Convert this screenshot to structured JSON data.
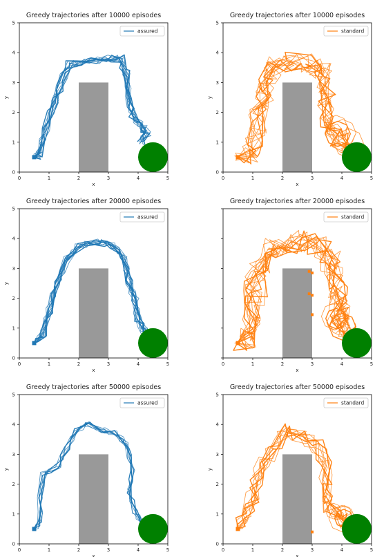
{
  "chart_data": [
    {
      "type": "line",
      "title": "Greedy trajectories after 10000 episodes",
      "xlabel": "x",
      "ylabel": "y",
      "xlim": [
        0,
        5
      ],
      "ylim": [
        0,
        5
      ],
      "xticks": [
        "0",
        "1",
        "2",
        "3",
        "4",
        "5"
      ],
      "yticks": [
        "0",
        "1",
        "2",
        "3",
        "4",
        "5"
      ],
      "legend": {
        "label": "assured",
        "position": "upper right"
      },
      "color": "#1f77b4",
      "obstacle": {
        "x": [
          2,
          3
        ],
        "y": [
          0,
          3
        ],
        "color": "#999999"
      },
      "goal": {
        "center": [
          4.5,
          0.5
        ],
        "radius": 0.5,
        "color": "#008000"
      },
      "start": [
        0.5,
        0.5
      ],
      "path": [
        [
          0.5,
          0.5
        ],
        [
          0.7,
          0.6
        ],
        [
          0.9,
          1.5
        ],
        [
          1.2,
          2.4
        ],
        [
          1.5,
          3.2
        ],
        [
          1.7,
          3.6
        ],
        [
          2.3,
          3.7
        ],
        [
          2.9,
          3.8
        ],
        [
          3.4,
          3.8
        ],
        [
          3.6,
          3.3
        ],
        [
          3.7,
          2.5
        ],
        [
          3.8,
          1.9
        ],
        [
          4.1,
          1.6
        ],
        [
          4.3,
          1.3
        ],
        [
          4.1,
          1.0
        ]
      ],
      "noise": 0.14,
      "count": 12,
      "extra_marks": []
    },
    {
      "type": "line",
      "title": "Greedy trajectories after 10000 episodes",
      "xlabel": "x",
      "ylabel": "y",
      "xlim": [
        0,
        5
      ],
      "ylim": [
        0,
        5
      ],
      "xticks": [
        "0",
        "1",
        "2",
        "3",
        "4",
        "5"
      ],
      "yticks": [
        "0",
        "1",
        "2",
        "3",
        "4",
        "5"
      ],
      "legend": {
        "label": "standard",
        "position": "upper right"
      },
      "color": "#ff7f0e",
      "obstacle": {
        "x": [
          2,
          3
        ],
        "y": [
          0,
          3
        ],
        "color": "#999999"
      },
      "goal": {
        "center": [
          4.5,
          0.5
        ],
        "radius": 0.5,
        "color": "#008000"
      },
      "start": [
        0.5,
        0.5
      ],
      "path": [
        [
          0.5,
          0.5
        ],
        [
          0.9,
          0.6
        ],
        [
          1.1,
          1.2
        ],
        [
          1.2,
          2.0
        ],
        [
          1.4,
          2.6
        ],
        [
          1.5,
          3.2
        ],
        [
          1.8,
          3.6
        ],
        [
          2.4,
          3.7
        ],
        [
          3.0,
          3.6
        ],
        [
          3.4,
          3.3
        ],
        [
          3.5,
          2.5
        ],
        [
          3.5,
          1.8
        ],
        [
          3.7,
          1.3
        ],
        [
          4.0,
          1.0
        ],
        [
          4.3,
          0.9
        ]
      ],
      "noise": 0.35,
      "count": 12,
      "extra_marks": []
    },
    {
      "type": "line",
      "title": "Greedy trajectories after 20000 episodes",
      "xlabel": "x",
      "ylabel": "y",
      "xlim": [
        0,
        5
      ],
      "ylim": [
        0,
        5
      ],
      "xticks": [
        "0",
        "1",
        "2",
        "3",
        "4",
        "5"
      ],
      "yticks": [
        "0",
        "1",
        "2",
        "3",
        "4",
        "5"
      ],
      "legend": {
        "label": "assured",
        "position": "upper right"
      },
      "color": "#1f77b4",
      "obstacle": {
        "x": [
          2,
          3
        ],
        "y": [
          0,
          3
        ],
        "color": "#999999"
      },
      "goal": {
        "center": [
          4.5,
          0.5
        ],
        "radius": 0.5,
        "color": "#008000"
      },
      "start": [
        0.5,
        0.5
      ],
      "path": [
        [
          0.5,
          0.5
        ],
        [
          0.8,
          0.8
        ],
        [
          1.0,
          1.6
        ],
        [
          1.3,
          2.5
        ],
        [
          1.6,
          3.3
        ],
        [
          2.0,
          3.7
        ],
        [
          2.6,
          3.9
        ],
        [
          3.1,
          3.8
        ],
        [
          3.5,
          3.4
        ],
        [
          3.7,
          2.6
        ],
        [
          3.9,
          1.9
        ],
        [
          4.0,
          1.3
        ],
        [
          4.2,
          0.9
        ],
        [
          4.3,
          0.6
        ]
      ],
      "noise": 0.13,
      "count": 12,
      "extra_marks": []
    },
    {
      "type": "line",
      "title": "Greedy trajectories after 20000 episodes",
      "xlabel": "x",
      "ylabel": "y",
      "xlim": [
        0,
        5
      ],
      "ylim": [
        0,
        5
      ],
      "xticks": [
        "0",
        "1",
        "2",
        "3",
        "4",
        "5"
      ],
      "yticks": [],
      "legend": {
        "label": "standard",
        "position": "upper right"
      },
      "color": "#ff7f0e",
      "obstacle": {
        "x": [
          2,
          3
        ],
        "y": [
          0,
          3
        ],
        "color": "#999999"
      },
      "goal": {
        "center": [
          4.5,
          0.5
        ],
        "radius": 0.5,
        "color": "#008000"
      },
      "start": [
        0.5,
        0.5
      ],
      "path": [
        [
          0.5,
          0.5
        ],
        [
          0.9,
          0.7
        ],
        [
          1.0,
          1.5
        ],
        [
          1.1,
          2.4
        ],
        [
          1.4,
          3.2
        ],
        [
          1.8,
          3.7
        ],
        [
          2.5,
          3.9
        ],
        [
          3.2,
          3.8
        ],
        [
          3.6,
          3.3
        ],
        [
          3.8,
          2.5
        ],
        [
          3.9,
          1.8
        ],
        [
          4.0,
          1.2
        ],
        [
          4.2,
          0.8
        ]
      ],
      "noise": 0.4,
      "count": 14,
      "extra_marks": [
        [
          2.9,
          2.9
        ],
        [
          3.0,
          2.85
        ],
        [
          2.9,
          2.15
        ],
        [
          3.0,
          2.1
        ],
        [
          3.0,
          1.45
        ]
      ]
    },
    {
      "type": "line",
      "title": "Greedy trajectories after 50000 episodes",
      "xlabel": "x",
      "ylabel": "y",
      "xlim": [
        0,
        5
      ],
      "ylim": [
        0,
        5
      ],
      "xticks": [
        "0",
        "1",
        "2",
        "3",
        "4",
        "5"
      ],
      "yticks": [
        "0",
        "1",
        "2",
        "3",
        "4",
        "5"
      ],
      "legend": {
        "label": "assured",
        "position": "upper right"
      },
      "color": "#1f77b4",
      "obstacle": {
        "x": [
          2,
          3
        ],
        "y": [
          0,
          3
        ],
        "color": "#999999"
      },
      "goal": {
        "center": [
          4.5,
          0.5
        ],
        "radius": 0.5,
        "color": "#008000"
      },
      "start": [
        0.5,
        0.5
      ],
      "path": [
        [
          0.5,
          0.5
        ],
        [
          0.7,
          0.7
        ],
        [
          0.7,
          1.5
        ],
        [
          0.8,
          2.3
        ],
        [
          1.3,
          2.6
        ],
        [
          1.6,
          3.2
        ],
        [
          1.9,
          3.8
        ],
        [
          2.3,
          4.0
        ],
        [
          2.8,
          3.8
        ],
        [
          3.3,
          3.7
        ],
        [
          3.6,
          3.3
        ],
        [
          3.8,
          2.5
        ],
        [
          3.7,
          1.8
        ],
        [
          3.9,
          1.1
        ],
        [
          4.1,
          0.7
        ]
      ],
      "noise": 0.1,
      "count": 8,
      "extra_marks": []
    },
    {
      "type": "line",
      "title": "Greedy trajectories after 50000 episodes",
      "xlabel": "x",
      "ylabel": "y",
      "xlim": [
        0,
        5
      ],
      "ylim": [
        0,
        5
      ],
      "xticks": [
        "0",
        "1",
        "2",
        "3",
        "4",
        "5"
      ],
      "yticks": [
        "0",
        "1",
        "2",
        "3",
        "4",
        "5"
      ],
      "legend": {
        "label": "standard",
        "position": "upper right"
      },
      "color": "#ff7f0e",
      "obstacle": {
        "x": [
          2,
          3
        ],
        "y": [
          0,
          3
        ],
        "color": "#999999"
      },
      "goal": {
        "center": [
          4.5,
          0.5
        ],
        "radius": 0.5,
        "color": "#008000"
      },
      "start": [
        0.5,
        0.5
      ],
      "path": [
        [
          0.5,
          0.5
        ],
        [
          0.7,
          0.8
        ],
        [
          1.0,
          1.5
        ],
        [
          1.2,
          2.4
        ],
        [
          1.6,
          3.0
        ],
        [
          2.0,
          3.8
        ],
        [
          2.6,
          3.6
        ],
        [
          3.2,
          3.3
        ],
        [
          3.5,
          2.6
        ],
        [
          3.4,
          1.8
        ],
        [
          3.6,
          1.2
        ],
        [
          3.9,
          1.0
        ],
        [
          4.1,
          0.7
        ]
      ],
      "noise": 0.25,
      "count": 10,
      "extra_marks": [
        [
          3.0,
          0.4
        ],
        [
          4.0,
          0.6
        ]
      ]
    }
  ]
}
